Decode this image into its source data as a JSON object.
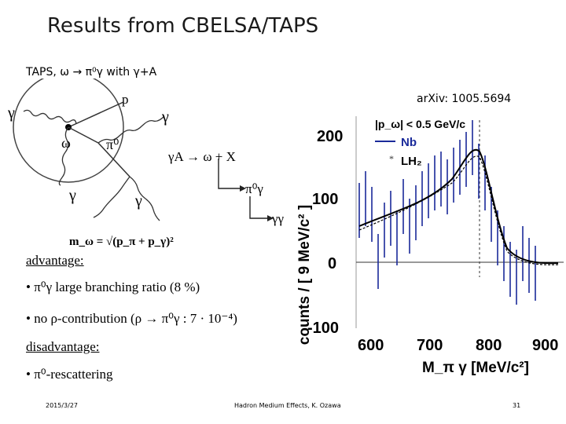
{
  "title": "Results from CBELSA/TAPS",
  "subtitle": "TAPS, ω → π⁰γ with γ+A",
  "reference": "arXiv: 1005.5694",
  "diagram": {
    "gamma_in": "γ",
    "proton": "p",
    "omega": "ω",
    "gamma_out": "γ",
    "pi0": "π⁰",
    "gamma_left": "γ",
    "gamma_right": "γ",
    "reaction": "γA → ω + X",
    "decay": "π⁰γ",
    "decay2": "γγ",
    "mass_formula": "m_ω = √(p_π + p_γ)²"
  },
  "advantage": {
    "heading": "advantage:",
    "items": [
      "• π⁰γ large branching ratio (8 %)",
      "• no ρ-contribution (ρ → π⁰γ : 7 · 10⁻⁴)"
    ]
  },
  "disadvantage": {
    "heading": "disadvantage:",
    "items": [
      "• π⁰-rescattering"
    ]
  },
  "plot": {
    "ylabel": "counts / [ 9 MeV/c² ]",
    "xlabel": "M_π γ [MeV/c²]",
    "yticks": [
      "200",
      "100",
      "0",
      "-100"
    ],
    "xticks": [
      "600",
      "700",
      "800",
      "900"
    ],
    "legend_cut": "|p_ω| < 0.5 GeV/c",
    "legend_nb": "Nb",
    "legend_lh2": "LH₂"
  },
  "footer": {
    "date": "2015/3/27",
    "center": "Hadron Medium Effects, K. Ozawa",
    "page": "31"
  }
}
